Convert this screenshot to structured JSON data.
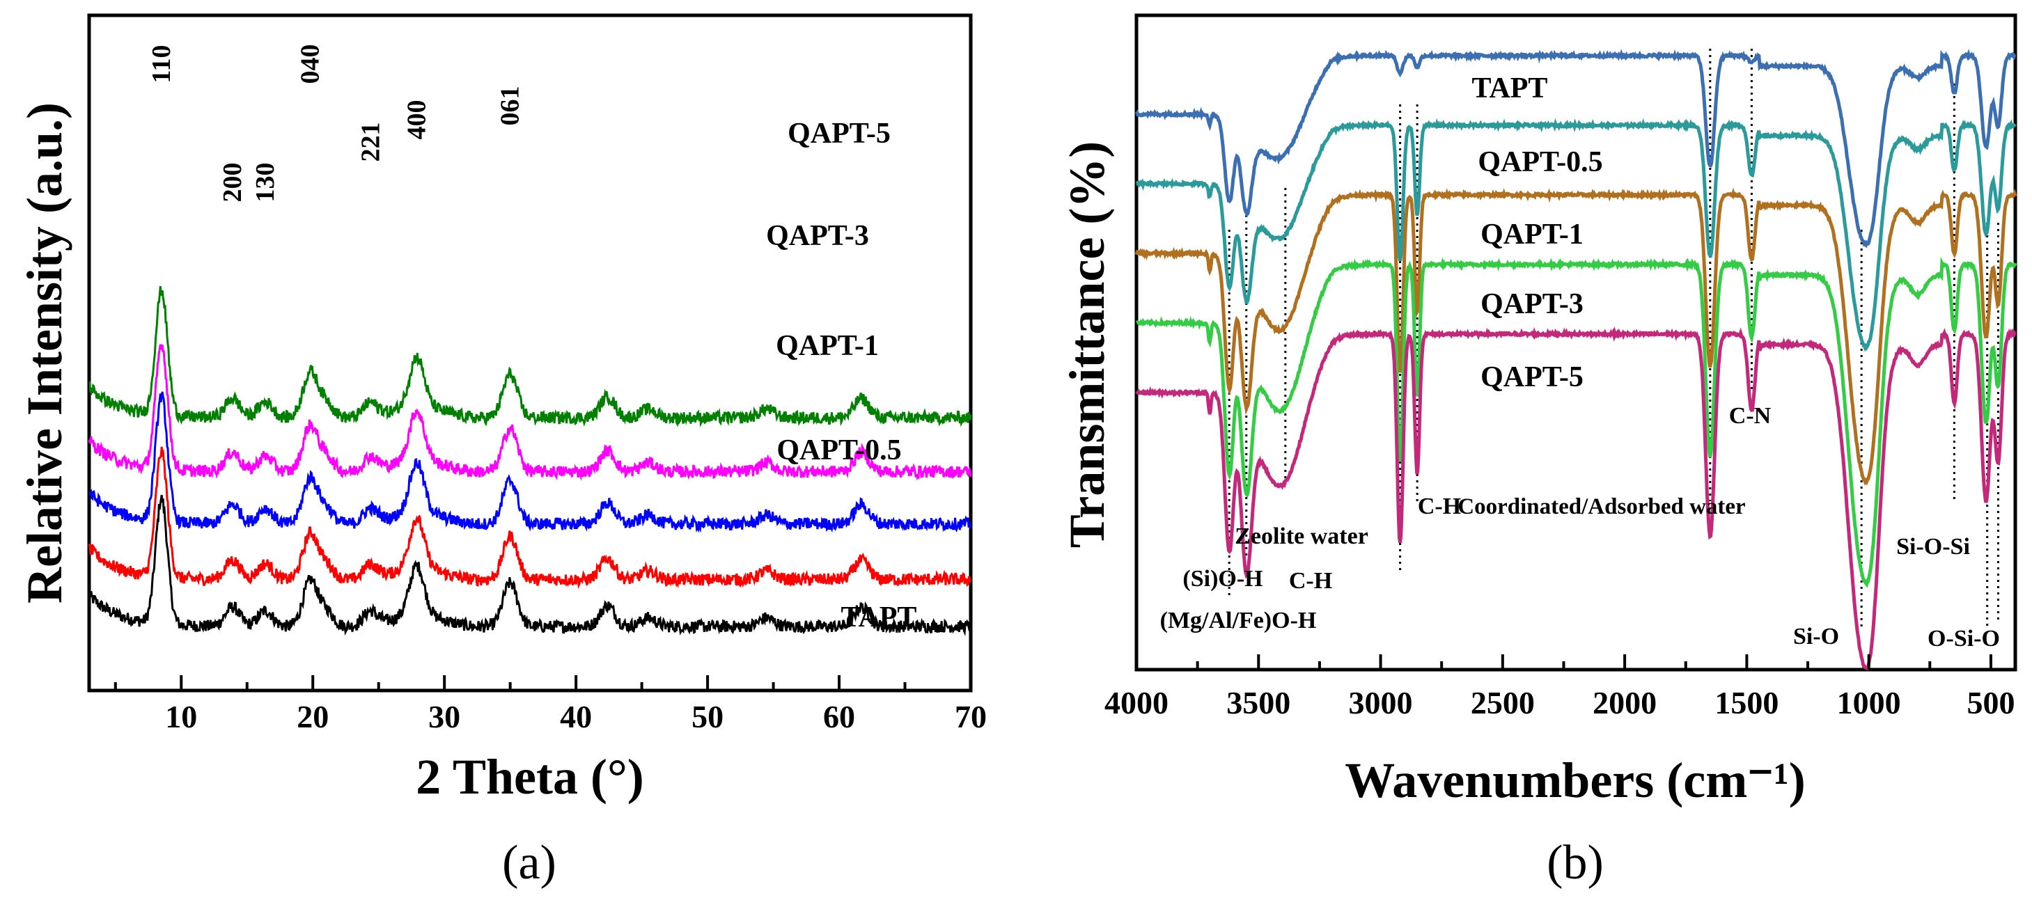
{
  "chart_data": [
    {
      "type": "line",
      "panel_label": "(a)",
      "xlabel": "2 Theta (°)",
      "ylabel": "Relative Intensity (a.u.)",
      "xlim": [
        3,
        70
      ],
      "xticks": [
        10,
        20,
        30,
        40,
        50,
        60,
        70
      ],
      "tick_labels": [
        "10",
        "20",
        "30",
        "40",
        "50",
        "60",
        "70"
      ],
      "peaks": [
        {
          "x": 8.5,
          "label": "110",
          "int": 3.6
        },
        {
          "x": 13.9,
          "label": "200",
          "int": 0.55
        },
        {
          "x": 16.4,
          "label": "130",
          "int": 0.45
        },
        {
          "x": 19.8,
          "label": "040",
          "int": 1.3
        },
        {
          "x": 24.4,
          "label": "221",
          "int": 0.45
        },
        {
          "x": 27.9,
          "label": "400",
          "int": 1.4
        },
        {
          "x": 35.0,
          "label": "061",
          "int": 1.25
        }
      ],
      "minor_peaks": [
        {
          "x": 21.0,
          "int": 0.45
        },
        {
          "x": 42.4,
          "int": 0.6
        },
        {
          "x": 45.5,
          "int": 0.25
        },
        {
          "x": 54.5,
          "int": 0.25
        },
        {
          "x": 61.7,
          "int": 0.55
        }
      ],
      "series": [
        {
          "name": "TAPT",
          "color": "#000000",
          "offset": 0.0
        },
        {
          "name": "QAPT-0.5",
          "color": "#ff0000",
          "offset": 1.35
        },
        {
          "name": "QAPT-1",
          "color": "#0000ff",
          "offset": 2.95
        },
        {
          "name": "QAPT-3",
          "color": "#ff00ff",
          "offset": 4.45
        },
        {
          "name": "QAPT-5",
          "color": "#008000",
          "offset": 6.0
        }
      ]
    },
    {
      "type": "line",
      "panel_label": "(b)",
      "xlabel": "Wavenumbers (cm⁻¹)",
      "ylabel": "Transmittance (%)",
      "xlim": [
        4000,
        400
      ],
      "xticks": [
        4000,
        3500,
        3000,
        2500,
        2000,
        1500,
        1000,
        500
      ],
      "tick_labels": [
        "4000",
        "3500",
        "3000",
        "2500",
        "2000",
        "1500",
        "1000",
        "500"
      ],
      "series": [
        {
          "name": "TAPT",
          "color": "#3c6fb2",
          "offset": 4.0,
          "scale": 0.55
        },
        {
          "name": "QAPT-0.5",
          "color": "#2a9a9a",
          "offset": 3.0,
          "scale": 0.65
        },
        {
          "name": "QAPT-1",
          "color": "#b0701e",
          "offset": 2.0,
          "scale": 0.85
        },
        {
          "name": "QAPT-3",
          "color": "#33cc44",
          "offset": 1.0,
          "scale": 0.95
        },
        {
          "name": "QAPT-5",
          "color": "#c4287a",
          "offset": 0.0,
          "scale": 1.0
        }
      ],
      "bands": [
        {
          "x": 3620,
          "label": "(Mg/Al/Fe)O-H"
        },
        {
          "x": 3550,
          "label": "(Si)O-H"
        },
        {
          "x": 3390,
          "label": "Zeolite water"
        },
        {
          "x": 2920,
          "label": "C-H"
        },
        {
          "x": 2850,
          "label": "C-H"
        },
        {
          "x": 1650,
          "label": "Coordinated/Adsorbed water"
        },
        {
          "x": 1480,
          "label": "C-N"
        },
        {
          "x": 1030,
          "label": "Si-O"
        },
        {
          "x": 650,
          "label": "Si-O-Si"
        },
        {
          "x": 515,
          "label": "O-Si-O"
        },
        {
          "x": 470,
          "label": ""
        }
      ]
    }
  ]
}
